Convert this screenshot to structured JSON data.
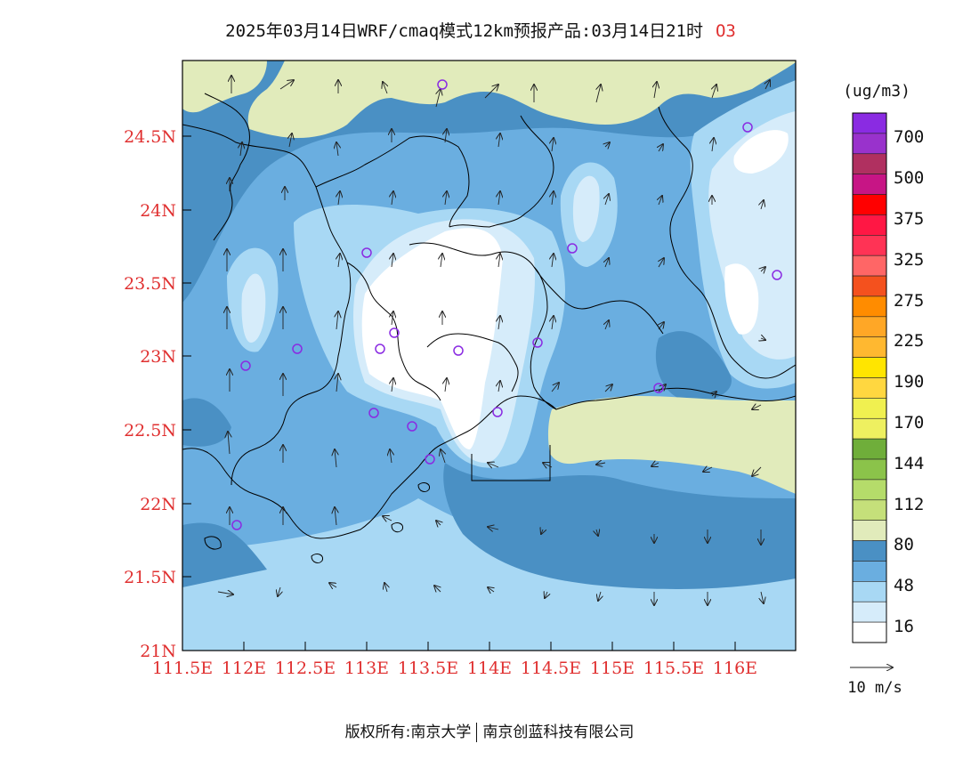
{
  "title": "2025年03月14日WRF/cmaq模式12km预报产品:03月14日21时",
  "pollutant": "O3",
  "legend": {
    "unit": "(ug/m3)",
    "levels": [
      "700",
      "500",
      "375",
      "325",
      "275",
      "225",
      "190",
      "170",
      "144",
      "112",
      "80",
      "48",
      "16"
    ],
    "colors": [
      "#8a2be2",
      "#9932cc",
      "#b03060",
      "#c71585",
      "#ff0000",
      "#ff1744",
      "#ff3355",
      "#ff6666",
      "#f4511e",
      "#ff8c00",
      "#ffa726",
      "#ffb830",
      "#ffe500",
      "#ffd740",
      "#f0f050",
      "#eef060",
      "#6fae3a",
      "#8bc34a",
      "#b5dc6a",
      "#c5e07a",
      "#e1ebbb",
      "#4a90c4",
      "#6aaee0",
      "#a8d8f4",
      "#d6ecfa",
      "#ffffff"
    ]
  },
  "wind_scale": {
    "label": "10 m/s"
  },
  "axes": {
    "lat_ticks": [
      "24.5N",
      "24N",
      "23.5N",
      "23N",
      "22.5N",
      "22N",
      "21.5N",
      "21N"
    ],
    "lon_ticks": [
      "111.5E",
      "112E",
      "112.5E",
      "113E",
      "113.5E",
      "114E",
      "114.5E",
      "115E",
      "115.5E",
      "116E"
    ]
  },
  "copyright": {
    "left": "版权所有:南京大学",
    "right": "南京创蓝科技有限公司"
  },
  "colors": {
    "axis_label": "#e03030",
    "land_gray": "#e1ebbb"
  }
}
